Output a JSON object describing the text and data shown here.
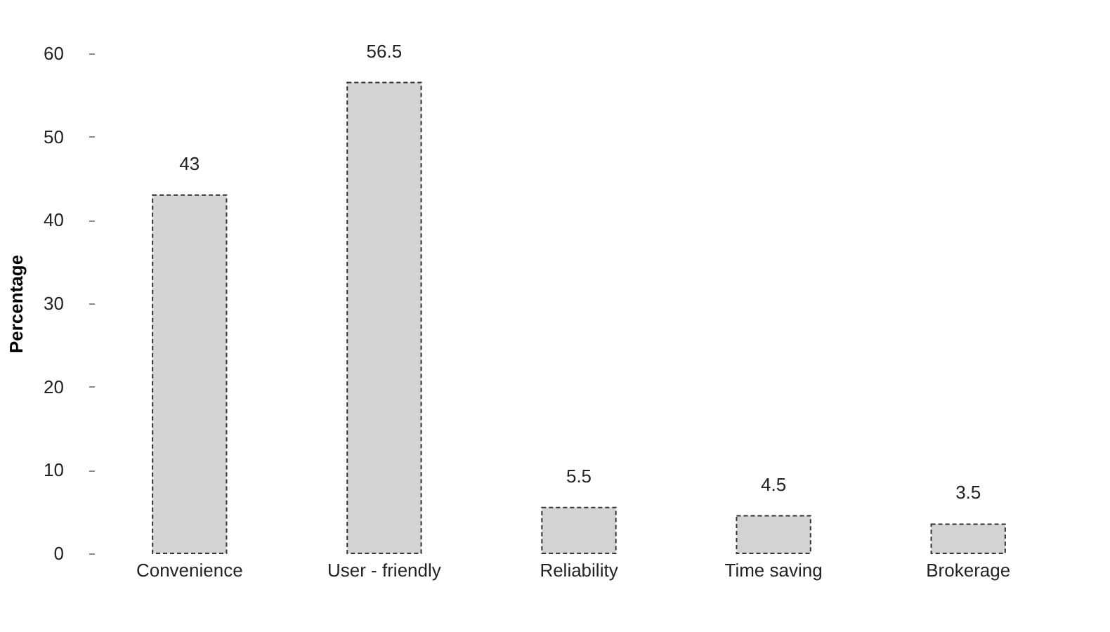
{
  "chart_data": {
    "type": "bar",
    "ylabel": "Percentage",
    "categories": [
      "Convenience",
      "User - friendly",
      "Reliability",
      "Time saving",
      "Brokerage"
    ],
    "values": [
      43,
      56.5,
      5.5,
      4.5,
      3.5
    ],
    "color": "#d4d4d4",
    "ylim": [
      0,
      60
    ],
    "yticks": [
      0,
      10,
      20,
      30,
      40,
      50,
      60
    ],
    "grid": false,
    "data_labels": true
  }
}
